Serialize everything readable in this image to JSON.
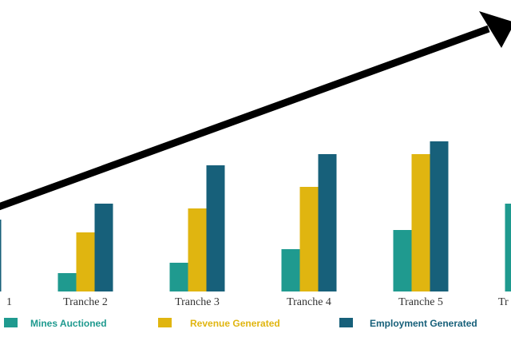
{
  "chart_data": {
    "type": "bar",
    "categories": [
      "1",
      "Tranche 2",
      "Tranche 3",
      "Tranche 4",
      "Tranche 5",
      "Tr"
    ],
    "series": [
      {
        "name": "Mines Auctioned",
        "color": "#1f9a8f",
        "values": [
          null,
          23,
          36,
          53,
          77,
          110
        ]
      },
      {
        "name": "Revenue Generated",
        "color": "#e0b510",
        "values": [
          null,
          74,
          104,
          131,
          172,
          null
        ]
      },
      {
        "name": "Employment Generated",
        "color": "#17607a",
        "values": [
          90,
          110,
          158,
          172,
          188,
          null
        ]
      }
    ]
  }
}
